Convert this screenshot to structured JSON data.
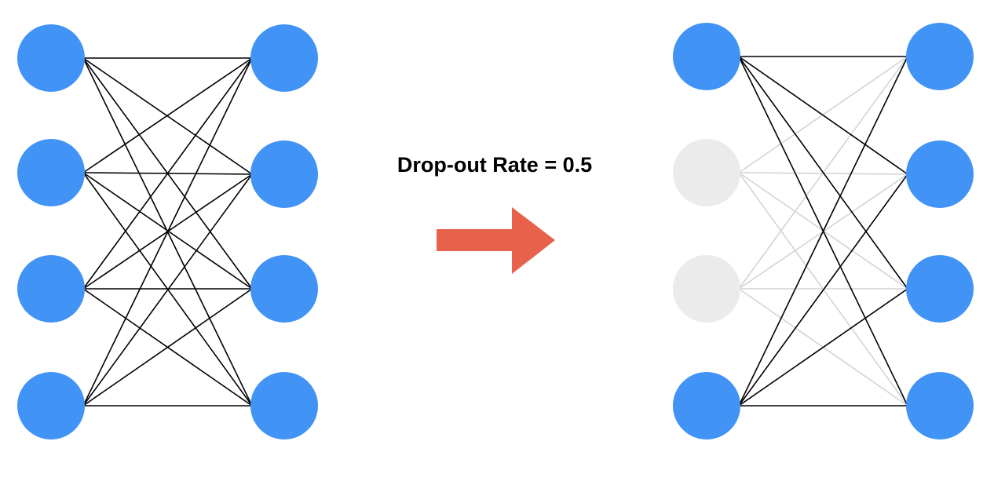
{
  "caption": "Drop-out Rate = 0.5",
  "colors": {
    "active_neuron": "#4193F5",
    "dropped_neuron": "#EBEBEB",
    "active_edge": "#000000",
    "dropped_edge": "#D4D4D4",
    "arrow": "#E8624B"
  },
  "networks": [
    {
      "id": "full",
      "input_neurons": [
        true,
        true,
        true,
        true
      ],
      "output_neurons": [
        true,
        true,
        true,
        true
      ]
    },
    {
      "id": "dropout",
      "input_neurons": [
        true,
        false,
        false,
        true
      ],
      "output_neurons": [
        true,
        true,
        true,
        true
      ]
    }
  ]
}
